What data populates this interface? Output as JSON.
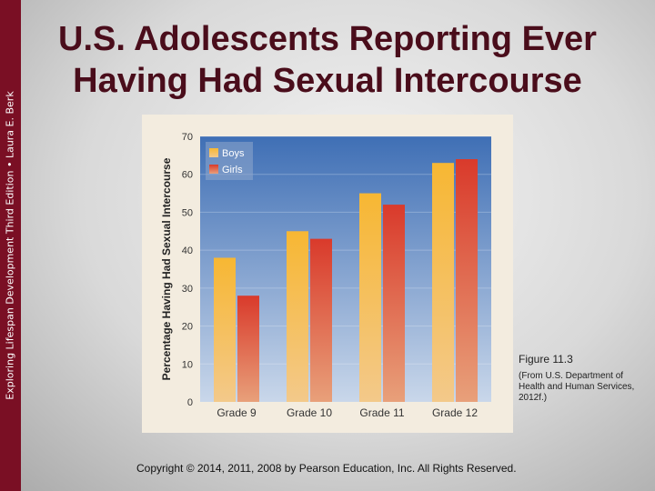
{
  "sidebar": {
    "text": "Exploring Lifespan Development Third Edition • Laura E. Berk"
  },
  "slide": {
    "title": "U.S. Adolescents Reporting Ever Having Had Sexual Intercourse",
    "figure_label": "Figure 11.3",
    "source_note": "(From U.S. Department of Health and Human Services, 2012f.)",
    "copyright": "Copyright © 2014, 2011, 2008 by Pearson Education, Inc. All Rights Reserved."
  },
  "colors": {
    "boys": "#f5a623",
    "girls": "#d93a2b",
    "sidebar": "#7a0f24",
    "plot_background": "#4a78b8"
  },
  "chart_data": {
    "type": "bar",
    "title": "",
    "xlabel": "",
    "ylabel": "Percentage Having Had Sexual Intercourse",
    "categories": [
      "Grade 9",
      "Grade 10",
      "Grade 11",
      "Grade 12"
    ],
    "series": [
      {
        "name": "Boys",
        "values": [
          38,
          45,
          55,
          63
        ]
      },
      {
        "name": "Girls",
        "values": [
          28,
          43,
          52,
          64
        ]
      }
    ],
    "ylim": [
      0,
      70
    ],
    "yticks": [
      0,
      10,
      20,
      30,
      40,
      50,
      60,
      70
    ],
    "legend": "top-left"
  }
}
